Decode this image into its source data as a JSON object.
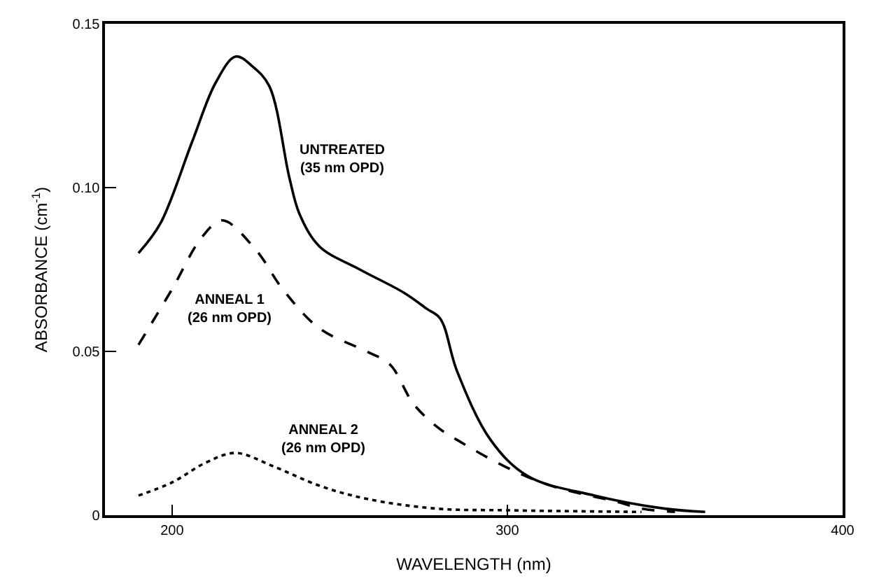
{
  "chart_data": {
    "type": "line",
    "xlabel": "WAVELENGTH (nm)",
    "ylabel": "ABSORBANCE (cm$^{-1}$)",
    "xlim": [
      180,
      400
    ],
    "xticks": [
      200,
      300,
      400
    ],
    "ylim": [
      0,
      0.15
    ],
    "yticks": [
      0,
      0.05,
      {
        "value": 0.1,
        "label": "0.10"
      },
      0.15
    ],
    "marker": "none",
    "series": [
      {
        "name": "UNTREATED\n(35 nm OPD)",
        "color": "#000000",
        "line_style": "solid",
        "x": [
          190,
          196.5,
          206,
          213,
          219,
          224,
          229,
          235,
          238,
          244,
          256,
          269,
          276,
          280,
          285,
          295,
          306,
          326,
          347,
          359
        ],
        "values": [
          0.08,
          0.089,
          0.114,
          0.132,
          0.14,
          0.137,
          0.131,
          0.103,
          0.092,
          0.082,
          0.075,
          0.068,
          0.063,
          0.06,
          0.044,
          0.023,
          0.012,
          0.006,
          0.002,
          0.001
        ]
      },
      {
        "name": "ANNEAL 1\n(26 nm OPD)",
        "color": "#000000",
        "line_style": "dashed",
        "x": [
          190,
          200,
          209,
          215,
          225,
          233,
          244,
          258,
          265,
          272,
          279,
          285,
          299,
          313,
          333,
          340,
          350
        ],
        "values": [
          0.052,
          0.069,
          0.085,
          0.09,
          0.081,
          0.069,
          0.057,
          0.05,
          0.046,
          0.034,
          0.027,
          0.023,
          0.015,
          0.009,
          0.004,
          0.002,
          0.001
        ]
      },
      {
        "name": "ANNEAL 2\n(26 nm OPD)",
        "color": "#000000",
        "line_style": "dotted",
        "x": [
          190,
          200,
          210,
          219,
          230,
          244,
          258,
          279,
          300,
          340
        ],
        "values": [
          0.006,
          0.01,
          0.016,
          0.019,
          0.015,
          0.009,
          0.005,
          0.002,
          0.0015,
          0.001
        ]
      }
    ]
  }
}
